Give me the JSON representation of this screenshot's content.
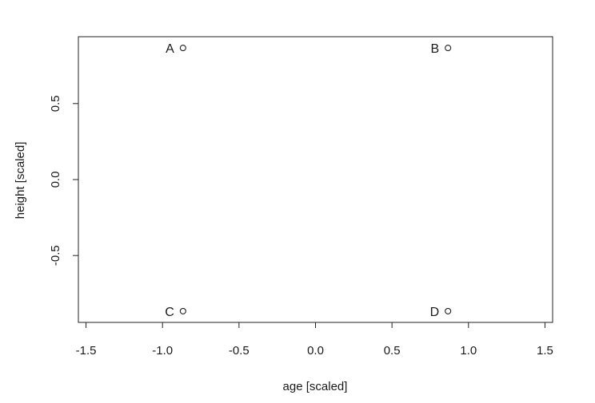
{
  "chart_data": {
    "type": "scatter",
    "title": "",
    "xlabel": "age [scaled]",
    "ylabel": "height [scaled]",
    "xlim": [
      -1.55,
      1.55
    ],
    "ylim": [
      -0.94,
      0.94
    ],
    "x_ticks": [
      -1.5,
      -1.0,
      -0.5,
      0.0,
      0.5,
      1.0,
      1.5
    ],
    "x_tick_labels": [
      "-1.5",
      "-1.0",
      "-0.5",
      "0.0",
      "0.5",
      "1.0",
      "1.5"
    ],
    "y_ticks": [
      -0.5,
      0.0,
      0.5
    ],
    "y_tick_labels": [
      "-0.5",
      "0.0",
      "0.5"
    ],
    "grid": false,
    "legend": "none",
    "points": [
      {
        "label": "A",
        "x": -0.866,
        "y": 0.866
      },
      {
        "label": "B",
        "x": 0.866,
        "y": 0.866
      },
      {
        "label": "C",
        "x": -0.866,
        "y": -0.866
      },
      {
        "label": "D",
        "x": 0.866,
        "y": -0.866
      }
    ],
    "marker": "open-circle",
    "color": "#222222"
  }
}
